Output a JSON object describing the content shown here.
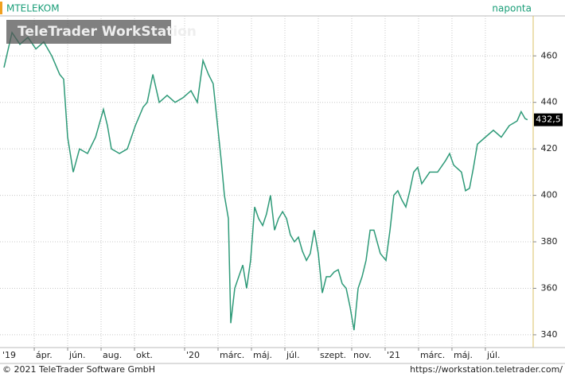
{
  "chart_data": {
    "type": "line",
    "title": "MTELEKOM",
    "period": "naponta",
    "watermark": "TeleTrader WorkStation",
    "footer_left": "© 2021 TeleTrader Software GmbH",
    "footer_right": "https://workstation.teletrader.com/",
    "series": [
      {
        "name": "MTELEKOM",
        "color": "#2e9a78",
        "x": [
          1.19,
          1.67,
          2.14,
          2.62,
          3.1,
          3.57,
          4.05,
          4.52,
          4.76,
          5.0,
          5.33,
          5.71,
          6.19,
          6.67,
          7.14,
          7.38,
          7.62,
          8.1,
          8.57,
          9.05,
          9.52,
          9.76,
          10.1,
          10.48,
          10.95,
          11.43,
          11.9,
          12.38,
          12.76,
          13.1,
          13.43,
          13.71,
          13.9,
          14.19,
          14.38,
          14.62,
          14.76,
          15.0,
          15.24,
          15.48,
          15.71,
          15.95,
          16.19,
          16.43,
          16.67,
          16.9,
          17.14,
          17.38,
          17.62,
          17.86,
          18.1,
          18.33,
          18.57,
          18.81,
          19.05,
          19.29,
          19.52,
          19.76,
          20.0,
          20.24,
          20.48,
          20.71,
          20.95,
          21.19,
          21.43,
          21.67,
          21.9,
          22.14,
          22.38,
          22.62,
          22.86,
          23.1,
          23.33,
          23.71,
          24.05,
          24.29,
          24.52,
          24.76,
          25.0,
          25.24,
          25.48,
          25.71,
          25.95,
          26.19,
          26.67,
          27.14,
          27.62,
          27.86,
          28.1,
          28.57,
          28.81,
          29.05,
          29.29,
          29.52,
          30.0,
          30.48,
          30.95,
          31.43,
          31.9,
          32.14,
          32.38,
          32.52
        ],
        "values": [
          455,
          470,
          465,
          468,
          463,
          466,
          460,
          452,
          450,
          425,
          410,
          420,
          418,
          425,
          437,
          430,
          420,
          418,
          420,
          430,
          438,
          440,
          452,
          440,
          443,
          440,
          442,
          445,
          440,
          458,
          452,
          448,
          435,
          415,
          400,
          390,
          345,
          360,
          365,
          370,
          360,
          372,
          395,
          390,
          387,
          392,
          400,
          385,
          390,
          393,
          390,
          383,
          380,
          382,
          376,
          372,
          375,
          385,
          375,
          358,
          365,
          365,
          367,
          368,
          362,
          360,
          352,
          342,
          360,
          365,
          372,
          385,
          385,
          375,
          372,
          385,
          400,
          402,
          398,
          395,
          402,
          410,
          412,
          405,
          410,
          410,
          415,
          418,
          413,
          410,
          402,
          403,
          412,
          422,
          425,
          428,
          425,
          430,
          432,
          436,
          433,
          432.5
        ]
      }
    ],
    "last_value": {
      "value": 432.5,
      "label": "432,5"
    },
    "xlim": [
      0.95,
      32.86
    ],
    "xticks": [
      {
        "value": 0,
        "label": "'19"
      },
      {
        "value": 3,
        "label": "ápr."
      },
      {
        "value": 5,
        "label": "jún."
      },
      {
        "value": 7,
        "label": "aug."
      },
      {
        "value": 9,
        "label": "okt."
      },
      {
        "value": 12,
        "label": "'20"
      },
      {
        "value": 14,
        "label": "márc."
      },
      {
        "value": 16,
        "label": "máj."
      },
      {
        "value": 18,
        "label": "júl."
      },
      {
        "value": 20,
        "label": "szept."
      },
      {
        "value": 22,
        "label": "nov."
      },
      {
        "value": 24,
        "label": "'21"
      },
      {
        "value": 26,
        "label": "márc."
      },
      {
        "value": 28,
        "label": "máj."
      },
      {
        "value": 30,
        "label": "júl."
      }
    ],
    "ylim": [
      334.5,
      477.2
    ],
    "yticks": [
      340,
      360,
      380,
      400,
      420,
      440,
      460
    ],
    "grid": true
  }
}
